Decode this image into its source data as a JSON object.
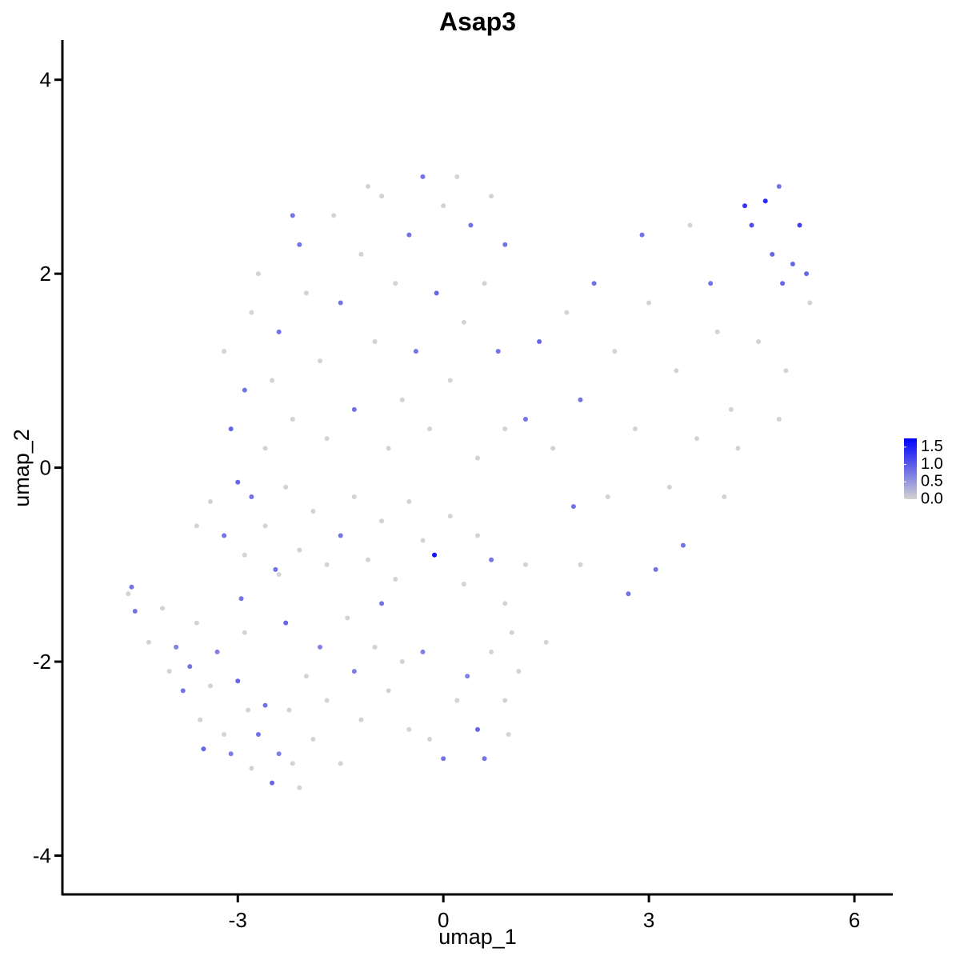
{
  "chart_data": {
    "type": "scatter",
    "title": "Asap3",
    "xlabel": "umap_1",
    "ylabel": "umap_2",
    "xlim": [
      -5.56,
      6.56
    ],
    "ylim": [
      -4.4,
      4.41
    ],
    "xticks": [
      -3,
      0,
      3,
      6
    ],
    "yticks": [
      -4,
      -2,
      0,
      2,
      4
    ],
    "grid": false,
    "x": [
      -4.6,
      -4.55,
      -4.5,
      -4.3,
      -4.1,
      -4.0,
      -3.9,
      -3.8,
      -3.7,
      -3.6,
      -3.55,
      -3.5,
      -3.4,
      -3.3,
      -3.2,
      -3.1,
      -3.0,
      -2.95,
      -2.9,
      -2.85,
      -2.8,
      -2.7,
      -2.6,
      -2.5,
      -2.45,
      -2.4,
      -2.3,
      -2.25,
      -2.2,
      -2.1,
      -2.0,
      -1.9,
      -1.8,
      -1.7,
      -1.5,
      -1.4,
      -1.3,
      -1.2,
      -1.0,
      -0.9,
      -0.8,
      -0.6,
      -0.5,
      -0.3,
      -0.2,
      0.0,
      0.2,
      0.35,
      0.5,
      0.6,
      0.7,
      0.9,
      1.0,
      1.1,
      0.95,
      -3.6,
      -3.4,
      -3.2,
      -3.0,
      -2.9,
      -2.8,
      -2.6,
      -2.4,
      -2.3,
      -2.1,
      -1.9,
      -1.7,
      -1.5,
      -1.3,
      -1.1,
      -0.9,
      -0.7,
      -0.5,
      -0.3,
      -0.13,
      0.1,
      0.3,
      0.5,
      0.7,
      0.9,
      1.2,
      -3.1,
      -2.9,
      -3.2,
      -2.8,
      -2.6,
      -2.5,
      -2.4,
      -2.2,
      -2.1,
      -2.0,
      -1.8,
      -1.7,
      -1.6,
      -1.5,
      -1.3,
      -1.2,
      -1.0,
      -0.9,
      -0.8,
      -0.7,
      -0.6,
      -0.5,
      -0.4,
      -0.3,
      -0.2,
      -0.1,
      0.0,
      0.1,
      0.3,
      0.4,
      0.5,
      0.6,
      0.7,
      0.8,
      0.9,
      0.9,
      -2.7,
      -2.2,
      -1.1,
      0.2,
      1.2,
      1.4,
      1.6,
      1.8,
      2.0,
      2.2,
      2.4,
      2.5,
      2.7,
      2.8,
      3.0,
      3.1,
      3.3,
      3.4,
      3.6,
      3.5,
      3.7,
      3.9,
      4.0,
      4.2,
      4.1,
      4.4,
      4.5,
      4.6,
      4.7,
      4.8,
      4.9,
      4.95,
      5.0,
      5.1,
      5.2,
      5.3,
      5.35,
      4.3,
      4.9,
      2.9,
      1.5,
      2.0,
      1.9
    ],
    "y": [
      -1.3,
      -1.23,
      -1.48,
      -1.8,
      -1.45,
      -2.1,
      -1.85,
      -2.3,
      -2.05,
      -1.6,
      -2.6,
      -2.9,
      -2.25,
      -1.9,
      -2.75,
      -2.95,
      -2.2,
      -1.35,
      -1.7,
      -2.5,
      -3.1,
      -2.75,
      -2.45,
      -3.25,
      -1.05,
      -2.95,
      -1.6,
      -2.5,
      -3.05,
      -3.3,
      -2.15,
      -2.8,
      -1.85,
      -2.4,
      -3.05,
      -1.55,
      -2.1,
      -2.6,
      -1.85,
      -1.4,
      -2.3,
      -2.0,
      -2.7,
      -1.9,
      -2.8,
      -3.0,
      -2.4,
      -2.15,
      -2.7,
      -3.0,
      -1.9,
      -2.4,
      -1.7,
      -2.1,
      -2.75,
      -0.6,
      -0.35,
      -0.7,
      -0.15,
      -0.9,
      -0.3,
      -0.6,
      -1.1,
      -0.2,
      -0.85,
      -0.45,
      -1.0,
      -0.7,
      -0.3,
      -0.95,
      -0.55,
      -1.15,
      -0.35,
      -0.75,
      -0.9,
      -0.5,
      -1.2,
      -0.7,
      -0.95,
      -1.4,
      -1.0,
      0.4,
      0.8,
      1.2,
      1.6,
      0.2,
      0.9,
      1.4,
      0.5,
      2.3,
      1.8,
      1.1,
      0.3,
      2.6,
      1.7,
      0.6,
      2.2,
      1.3,
      2.8,
      0.2,
      1.9,
      0.7,
      2.4,
      1.2,
      3.0,
      0.4,
      1.8,
      2.7,
      0.9,
      1.5,
      2.5,
      0.1,
      1.9,
      2.8,
      1.2,
      0.4,
      2.3,
      2.0,
      2.6,
      2.9,
      3.0,
      0.5,
      1.3,
      0.2,
      1.6,
      0.7,
      1.9,
      -0.3,
      1.2,
      -1.3,
      0.4,
      1.7,
      -1.05,
      -0.2,
      1.0,
      2.5,
      -0.8,
      0.3,
      1.9,
      1.4,
      0.6,
      -0.3,
      2.7,
      2.5,
      1.3,
      2.75,
      2.2,
      2.9,
      1.9,
      1.0,
      2.1,
      2.5,
      2.0,
      1.7,
      0.2,
      0.5,
      2.4,
      -1.8,
      -1.0,
      -0.4
    ],
    "expression": [
      0,
      0.8,
      0.8,
      0,
      0,
      0,
      0.7,
      0.8,
      0.8,
      0,
      0,
      0.9,
      0,
      0.7,
      0,
      0.7,
      0.9,
      0.8,
      0,
      0,
      0,
      0.8,
      0.8,
      0.9,
      0.8,
      0.7,
      0.9,
      0,
      0,
      0,
      0,
      0,
      0.7,
      0,
      0,
      0,
      0.7,
      0,
      0,
      0.8,
      0,
      0,
      0,
      0.7,
      0,
      0.8,
      0,
      0.7,
      0.9,
      0.8,
      0,
      0,
      0,
      0,
      0,
      0,
      0,
      0.8,
      0.9,
      0,
      0.8,
      0,
      0,
      0,
      0,
      0,
      0,
      0.8,
      0,
      0,
      0,
      0,
      0,
      0,
      1.6,
      0,
      0,
      0,
      0.8,
      0,
      0,
      0.9,
      0.8,
      0,
      0,
      0,
      0,
      0.8,
      0,
      0.8,
      0,
      0,
      0,
      0,
      0.8,
      0.8,
      0,
      0,
      0,
      0,
      0,
      0,
      0.8,
      0.8,
      0.8,
      0,
      0.9,
      0,
      0,
      0,
      0.8,
      0,
      0,
      0,
      0.8,
      0,
      0.8,
      0,
      0.8,
      0,
      0,
      0.8,
      0.9,
      0,
      0,
      0.8,
      0.8,
      0,
      0,
      0.8,
      0,
      0,
      0.8,
      0,
      0,
      0,
      0.8,
      0,
      0.8,
      0,
      0,
      0,
      1.3,
      1.1,
      0,
      1.4,
      0.9,
      0.8,
      0.9,
      0,
      0.9,
      1.2,
      0.9,
      0,
      0,
      0,
      0.8,
      0,
      0,
      0.8
    ],
    "colorbar": {
      "lim": [
        0,
        1.75
      ],
      "colors": [
        "#d3d3d3",
        "#0000ff"
      ],
      "ticks": [
        {
          "value": 0,
          "label": "0.0"
        },
        0.5,
        {
          "value": 1,
          "label": "1.0"
        },
        1.5
      ]
    }
  }
}
